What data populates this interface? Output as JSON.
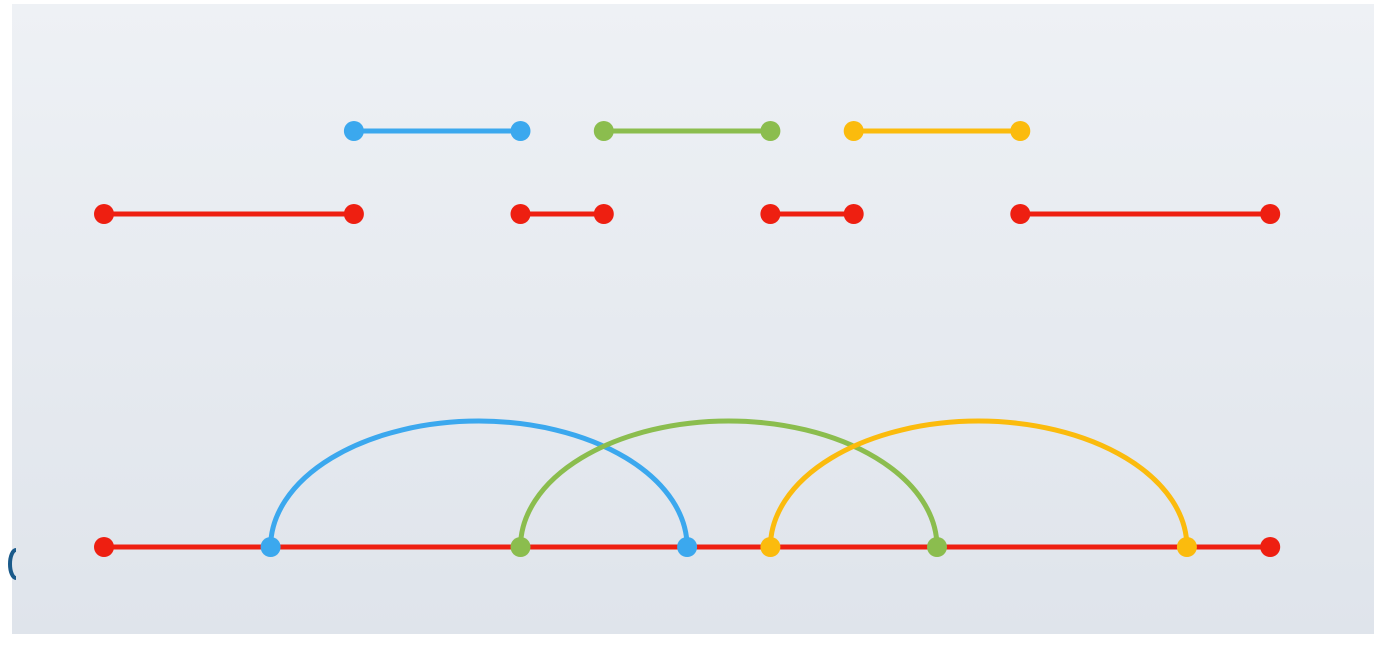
{
  "colors": {
    "red": "#ee1f11",
    "blue": "#3ba8ee",
    "green": "#8bbd4e",
    "orange": "#fbbb0d",
    "bg_top": "#eef1f5",
    "bg_bottom": "#dfe4eb",
    "left_edge_mark": "#1a5a8a"
  },
  "diagram": {
    "description_colors": [
      "blue",
      "green",
      "orange"
    ],
    "top_row_segments": [
      {
        "color": "blue",
        "from": 3,
        "to": 5
      },
      {
        "color": "green",
        "from": 6,
        "to": 8
      },
      {
        "color": "orange",
        "from": 9,
        "to": 11
      }
    ],
    "middle_row_segments": [
      {
        "color": "red",
        "from": 0,
        "to": 3
      },
      {
        "color": "red",
        "from": 5,
        "to": 6
      },
      {
        "color": "red",
        "from": 8,
        "to": 9
      },
      {
        "color": "red",
        "from": 11,
        "to": 14
      }
    ],
    "bottom_line": {
      "color": "red",
      "from": 0,
      "to": 14
    },
    "bottom_arcs": [
      {
        "color": "blue",
        "from": 2,
        "to": 7
      },
      {
        "color": "green",
        "from": 5,
        "to": 10
      },
      {
        "color": "orange",
        "from": 8,
        "to": 13
      }
    ],
    "bottom_endpoints": [
      {
        "color": "red",
        "at": 0
      },
      {
        "color": "red",
        "at": 14
      }
    ]
  }
}
